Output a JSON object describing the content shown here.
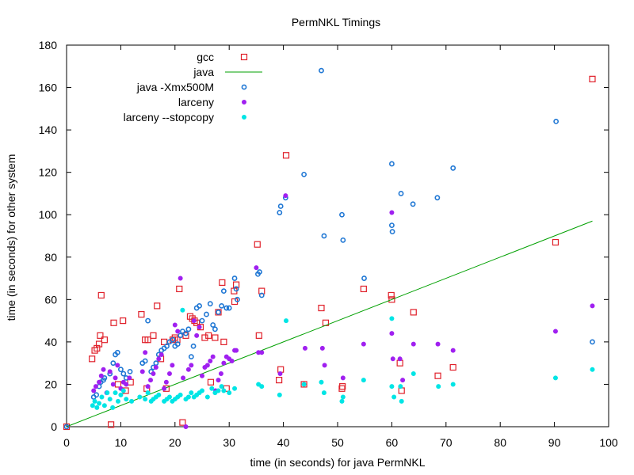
{
  "chart_data": {
    "type": "scatter",
    "title": "PermNKL Timings",
    "xlabel": "time (in seconds) for java PermNKL",
    "ylabel": "time (in seconds) for other system",
    "xlim": [
      0,
      100
    ],
    "ylim": [
      0,
      180
    ],
    "xticks": [
      "0",
      "10",
      "20",
      "30",
      "40",
      "50",
      "60",
      "70",
      "80",
      "90",
      "100"
    ],
    "yticks": [
      "0",
      "20",
      "40",
      "60",
      "80",
      "100",
      "120",
      "140",
      "160",
      "180"
    ],
    "legend_position": "top-left",
    "grid": false,
    "series": [
      {
        "name": "gcc",
        "marker": "open-square",
        "color": "#e0202a",
        "points": [
          [
            0,
            0
          ],
          [
            4.7,
            32
          ],
          [
            5.2,
            36
          ],
          [
            5.6,
            37
          ],
          [
            6,
            39
          ],
          [
            6.2,
            43
          ],
          [
            6.4,
            62
          ],
          [
            7,
            41
          ],
          [
            8.2,
            1
          ],
          [
            8.7,
            49
          ],
          [
            9.5,
            20
          ],
          [
            10.4,
            50
          ],
          [
            10.9,
            17
          ],
          [
            11.8,
            21
          ],
          [
            13.8,
            53
          ],
          [
            14.5,
            41
          ],
          [
            14.8,
            18
          ],
          [
            15,
            41
          ],
          [
            16,
            43
          ],
          [
            16.7,
            57
          ],
          [
            17.4,
            32
          ],
          [
            18,
            40
          ],
          [
            18.4,
            18
          ],
          [
            19.6,
            41
          ],
          [
            20,
            42
          ],
          [
            20.4,
            41
          ],
          [
            20.8,
            65
          ],
          [
            21.4,
            2
          ],
          [
            22,
            43
          ],
          [
            22.8,
            52
          ],
          [
            23.2,
            51
          ],
          [
            23.6,
            50
          ],
          [
            24,
            49
          ],
          [
            24.7,
            47
          ],
          [
            25.5,
            42
          ],
          [
            26.2,
            43
          ],
          [
            26.6,
            21
          ],
          [
            27.4,
            42
          ],
          [
            28,
            54
          ],
          [
            28.7,
            68
          ],
          [
            29,
            40
          ],
          [
            29.5,
            18
          ],
          [
            30.9,
            64
          ],
          [
            31,
            59
          ],
          [
            31.3,
            67
          ],
          [
            35.2,
            86
          ],
          [
            35.5,
            43
          ],
          [
            36,
            64
          ],
          [
            39.2,
            22
          ],
          [
            39.5,
            27
          ],
          [
            40.5,
            128
          ],
          [
            43.8,
            20
          ],
          [
            47,
            56
          ],
          [
            47.8,
            49
          ],
          [
            50.8,
            18
          ],
          [
            50.9,
            19
          ],
          [
            54.8,
            65
          ],
          [
            59.9,
            62
          ],
          [
            60,
            60
          ],
          [
            61.5,
            30
          ],
          [
            61.8,
            17
          ],
          [
            64,
            54
          ],
          [
            68.5,
            24
          ],
          [
            71.3,
            28
          ],
          [
            90.2,
            87
          ],
          [
            97,
            164
          ]
        ]
      },
      {
        "name": "java",
        "marker": "line",
        "color": "#00a000",
        "points": [
          [
            0,
            0
          ],
          [
            97,
            97
          ]
        ]
      },
      {
        "name": "java -Xmx500M",
        "marker": "open-circle",
        "color": "#1f77d4",
        "points": [
          [
            0,
            0
          ],
          [
            5,
            14
          ],
          [
            5.5,
            15
          ],
          [
            6,
            19
          ],
          [
            6.3,
            21
          ],
          [
            6.8,
            22
          ],
          [
            7,
            23
          ],
          [
            8,
            25
          ],
          [
            8.6,
            30
          ],
          [
            9,
            34
          ],
          [
            9.4,
            35
          ],
          [
            10,
            27
          ],
          [
            10.5,
            25
          ],
          [
            11,
            23
          ],
          [
            11.7,
            26
          ],
          [
            14,
            30
          ],
          [
            14.5,
            31
          ],
          [
            15,
            50
          ],
          [
            15.6,
            26
          ],
          [
            16,
            28
          ],
          [
            16.5,
            30
          ],
          [
            17,
            34
          ],
          [
            17.5,
            36
          ],
          [
            18,
            37
          ],
          [
            18.5,
            38
          ],
          [
            19,
            40
          ],
          [
            19.6,
            41
          ],
          [
            20,
            38
          ],
          [
            20.5,
            39
          ],
          [
            21,
            43
          ],
          [
            21.4,
            45
          ],
          [
            22,
            44
          ],
          [
            22.5,
            46
          ],
          [
            23,
            33
          ],
          [
            23.4,
            38
          ],
          [
            24,
            56
          ],
          [
            24.5,
            57
          ],
          [
            25,
            50
          ],
          [
            25.8,
            53
          ],
          [
            26.5,
            58
          ],
          [
            27,
            48
          ],
          [
            27.4,
            46
          ],
          [
            28,
            54
          ],
          [
            28.6,
            57
          ],
          [
            29,
            64
          ],
          [
            29.5,
            56
          ],
          [
            30,
            56
          ],
          [
            31,
            70
          ],
          [
            31.3,
            65
          ],
          [
            31.5,
            60
          ],
          [
            35.3,
            72
          ],
          [
            35.6,
            73
          ],
          [
            36,
            62
          ],
          [
            39.3,
            101
          ],
          [
            39.5,
            104
          ],
          [
            40.4,
            108
          ],
          [
            43.8,
            119
          ],
          [
            47,
            168
          ],
          [
            47.5,
            90
          ],
          [
            50.8,
            100
          ],
          [
            51,
            88
          ],
          [
            54.9,
            70
          ],
          [
            60,
            124
          ],
          [
            60,
            95
          ],
          [
            60.1,
            92
          ],
          [
            61.7,
            110
          ],
          [
            63.9,
            105
          ],
          [
            68.4,
            108
          ],
          [
            71.3,
            122
          ],
          [
            90.3,
            144
          ],
          [
            97,
            40
          ]
        ]
      },
      {
        "name": "larceny",
        "marker": "filled-circle",
        "color": "#a020f0",
        "points": [
          [
            5,
            17
          ],
          [
            5.4,
            19
          ],
          [
            6,
            21
          ],
          [
            6.4,
            24
          ],
          [
            6.8,
            27
          ],
          [
            7.4,
            16
          ],
          [
            8,
            26
          ],
          [
            8.6,
            20
          ],
          [
            9,
            23
          ],
          [
            9.4,
            29
          ],
          [
            10,
            18
          ],
          [
            10.5,
            21
          ],
          [
            11,
            20
          ],
          [
            11.6,
            23
          ],
          [
            14,
            26
          ],
          [
            14.5,
            35
          ],
          [
            15,
            19
          ],
          [
            15.5,
            22
          ],
          [
            16,
            25
          ],
          [
            16.5,
            28
          ],
          [
            17,
            32
          ],
          [
            17.5,
            34
          ],
          [
            18,
            18
          ],
          [
            18.4,
            21
          ],
          [
            19,
            25
          ],
          [
            19.5,
            29
          ],
          [
            20,
            48
          ],
          [
            20.5,
            45
          ],
          [
            21,
            70
          ],
          [
            21.5,
            23
          ],
          [
            22,
            0
          ],
          [
            22.5,
            27
          ],
          [
            23,
            29
          ],
          [
            23.5,
            50
          ],
          [
            24,
            43
          ],
          [
            24.5,
            47
          ],
          [
            25,
            24
          ],
          [
            25.5,
            28
          ],
          [
            26,
            29
          ],
          [
            26.5,
            31
          ],
          [
            27,
            33
          ],
          [
            27.5,
            17
          ],
          [
            28,
            22
          ],
          [
            28.5,
            25
          ],
          [
            29,
            30
          ],
          [
            29.5,
            33
          ],
          [
            30,
            32
          ],
          [
            30.5,
            31
          ],
          [
            31,
            36
          ],
          [
            31.3,
            36
          ],
          [
            35,
            75
          ],
          [
            35.4,
            35
          ],
          [
            36,
            35
          ],
          [
            39.4,
            25
          ],
          [
            40.4,
            109
          ],
          [
            44,
            37
          ],
          [
            47.2,
            37
          ],
          [
            47.6,
            29
          ],
          [
            51,
            23
          ],
          [
            54.8,
            39
          ],
          [
            60,
            101
          ],
          [
            60,
            44
          ],
          [
            60.2,
            32
          ],
          [
            61.5,
            32
          ],
          [
            62,
            22
          ],
          [
            64,
            39
          ],
          [
            68.5,
            39
          ],
          [
            71.3,
            36
          ],
          [
            90.2,
            45
          ],
          [
            97,
            57
          ]
        ]
      },
      {
        "name": "larceny --stopcopy",
        "marker": "filled-circle",
        "color": "#00e5e5",
        "points": [
          [
            4.8,
            10
          ],
          [
            5.2,
            12
          ],
          [
            5.6,
            9
          ],
          [
            6,
            11
          ],
          [
            6.5,
            14
          ],
          [
            7,
            10
          ],
          [
            7.5,
            16
          ],
          [
            8,
            13
          ],
          [
            8.5,
            9
          ],
          [
            9,
            16
          ],
          [
            9.5,
            12
          ],
          [
            10,
            15
          ],
          [
            10.5,
            17
          ],
          [
            11,
            13
          ],
          [
            12,
            12
          ],
          [
            13.5,
            14
          ],
          [
            14.5,
            13
          ],
          [
            15,
            16
          ],
          [
            15.6,
            12
          ],
          [
            16,
            13
          ],
          [
            16.5,
            14
          ],
          [
            17,
            15
          ],
          [
            18,
            12
          ],
          [
            18.5,
            13
          ],
          [
            19,
            14
          ],
          [
            19.5,
            12
          ],
          [
            20,
            13
          ],
          [
            20.5,
            14
          ],
          [
            21,
            15
          ],
          [
            21.4,
            55
          ],
          [
            22,
            13
          ],
          [
            22.5,
            14
          ],
          [
            23,
            16
          ],
          [
            23.5,
            14
          ],
          [
            24,
            15
          ],
          [
            24.5,
            16
          ],
          [
            25,
            17
          ],
          [
            26,
            14
          ],
          [
            26.8,
            18
          ],
          [
            27.4,
            16
          ],
          [
            28,
            17
          ],
          [
            28.6,
            19
          ],
          [
            29,
            17
          ],
          [
            30,
            16
          ],
          [
            31,
            18
          ],
          [
            35.4,
            20
          ],
          [
            36,
            19
          ],
          [
            39.3,
            15
          ],
          [
            40.5,
            50
          ],
          [
            43.8,
            20
          ],
          [
            47,
            21
          ],
          [
            47.5,
            16
          ],
          [
            50.8,
            12
          ],
          [
            51,
            14
          ],
          [
            54.8,
            22
          ],
          [
            60,
            51
          ],
          [
            60,
            19
          ],
          [
            60.4,
            14
          ],
          [
            61.6,
            19
          ],
          [
            61.8,
            12
          ],
          [
            64,
            25
          ],
          [
            68.6,
            19
          ],
          [
            71.3,
            20
          ],
          [
            90.2,
            23
          ],
          [
            97,
            27
          ]
        ]
      }
    ]
  }
}
